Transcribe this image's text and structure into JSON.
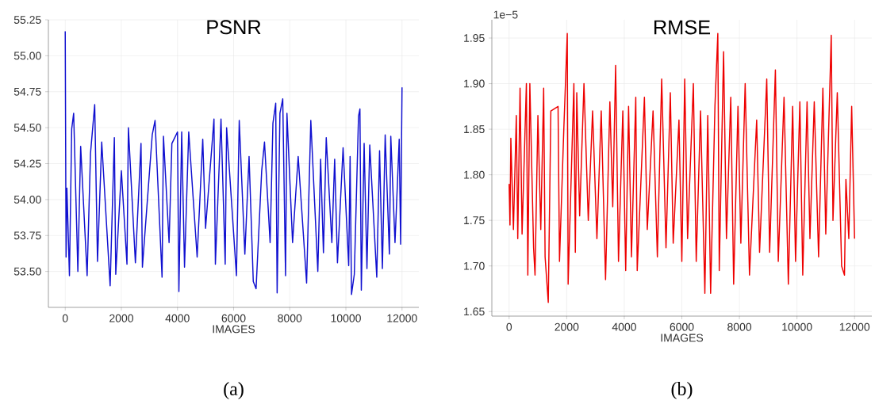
{
  "chart_data": [
    {
      "type": "line",
      "title": "PSNR",
      "xlabel": "IMAGES",
      "annotations": [
        "(a)"
      ],
      "grid": true,
      "xlim": [
        -600,
        12600
      ],
      "xticks": [
        0,
        2000,
        4000,
        6000,
        8000,
        10000,
        12000
      ],
      "ylim": [
        53.25,
        55.25
      ],
      "yticks": [
        {
          "value": 53.5,
          "label": "53.50"
        },
        {
          "value": 53.75,
          "label": "53.75"
        },
        {
          "value": 54.0,
          "label": "54.00"
        },
        {
          "value": 54.25,
          "label": "54.25"
        },
        {
          "value": 54.5,
          "label": "54.50"
        },
        {
          "value": 54.75,
          "label": "54.75"
        },
        {
          "value": 55.0,
          "label": "55.00"
        },
        {
          "value": 55.25,
          "label": "55.25"
        }
      ],
      "x": [
        0,
        30,
        60,
        130,
        150,
        230,
        300,
        450,
        550,
        780,
        900,
        1050,
        1150,
        1300,
        1600,
        1750,
        1800,
        2000,
        2200,
        2250,
        2500,
        2700,
        2750,
        3100,
        3200,
        3450,
        3500,
        3700,
        3800,
        4000,
        4050,
        4150,
        4250,
        4400,
        4700,
        4900,
        5000,
        5300,
        5350,
        5550,
        5700,
        5750,
        6100,
        6200,
        6400,
        6550,
        6700,
        6800,
        7000,
        7100,
        7300,
        7400,
        7500,
        7550,
        7650,
        7750,
        7850,
        7900,
        8100,
        8300,
        8600,
        8750,
        9000,
        9100,
        9200,
        9300,
        9500,
        9600,
        9700,
        9900,
        10100,
        10150,
        10200,
        10300,
        10450,
        10500,
        10550,
        10650,
        10750,
        10850,
        11100,
        11200,
        11300,
        11400,
        11550,
        11600,
        11750,
        11900,
        11950,
        12000
      ],
      "series": [
        {
          "color": "#1010d0",
          "values": [
            55.17,
            53.6,
            54.08,
            53.6,
            53.47,
            54.49,
            54.6,
            53.5,
            54.37,
            53.47,
            54.32,
            54.66,
            53.57,
            54.4,
            53.4,
            54.43,
            53.48,
            54.2,
            53.55,
            54.5,
            53.56,
            54.39,
            53.53,
            54.45,
            54.55,
            53.46,
            54.44,
            53.7,
            54.39,
            54.47,
            53.36,
            54.47,
            53.53,
            54.47,
            53.6,
            54.42,
            53.8,
            54.56,
            53.55,
            54.56,
            53.55,
            54.5,
            53.47,
            54.55,
            53.62,
            54.3,
            53.43,
            53.38,
            54.2,
            54.4,
            53.7,
            54.53,
            54.67,
            53.35,
            54.6,
            54.7,
            53.47,
            54.6,
            53.7,
            54.3,
            53.42,
            54.55,
            53.5,
            54.28,
            53.63,
            54.43,
            53.7,
            54.28,
            53.56,
            54.36,
            53.54,
            54.3,
            53.34,
            53.48,
            54.58,
            54.63,
            53.37,
            54.39,
            53.52,
            54.38,
            53.46,
            54.34,
            53.52,
            54.45,
            53.62,
            54.44,
            53.7,
            54.42,
            53.69,
            54.78
          ]
        }
      ]
    },
    {
      "type": "line",
      "title": "RMSE",
      "xlabel": "IMAGES",
      "annotations": [
        "1e−5",
        "(b)"
      ],
      "grid": true,
      "xlim": [
        -600,
        12600
      ],
      "xticks": [
        0,
        2000,
        4000,
        6000,
        8000,
        10000,
        12000
      ],
      "ylim": [
        1.645,
        1.97
      ],
      "yticks": [
        {
          "value": 1.65,
          "label": "1.65"
        },
        {
          "value": 1.7,
          "label": "1.70"
        },
        {
          "value": 1.75,
          "label": "1.75"
        },
        {
          "value": 1.8,
          "label": "1.80"
        },
        {
          "value": 1.85,
          "label": "1.85"
        },
        {
          "value": 1.9,
          "label": "1.90"
        },
        {
          "value": 1.95,
          "label": "1.95"
        }
      ],
      "x": [
        0,
        30,
        60,
        150,
        250,
        300,
        380,
        450,
        600,
        650,
        720,
        850,
        900,
        1000,
        1100,
        1200,
        1250,
        1360,
        1450,
        1700,
        1750,
        1900,
        2020,
        2050,
        2250,
        2300,
        2350,
        2450,
        2600,
        2750,
        2900,
        3050,
        3200,
        3350,
        3500,
        3600,
        3700,
        3800,
        3950,
        4050,
        4150,
        4250,
        4400,
        4450,
        4700,
        4800,
        5000,
        5150,
        5300,
        5450,
        5600,
        5700,
        5900,
        6000,
        6100,
        6200,
        6400,
        6500,
        6650,
        6800,
        6900,
        7000,
        7150,
        7250,
        7300,
        7450,
        7550,
        7700,
        7800,
        7950,
        8050,
        8200,
        8350,
        8600,
        8700,
        8950,
        9050,
        9250,
        9350,
        9550,
        9700,
        9850,
        9950,
        10100,
        10200,
        10350,
        10450,
        10600,
        10750,
        10900,
        11000,
        11190,
        11250,
        11400,
        11550,
        11650,
        11700,
        11800,
        11900,
        12000
      ],
      "series": [
        {
          "color": "#ee0000",
          "values": [
            1.79,
            1.745,
            1.84,
            1.74,
            1.865,
            1.73,
            1.895,
            1.735,
            1.9,
            1.69,
            1.9,
            1.72,
            1.69,
            1.865,
            1.74,
            1.895,
            1.71,
            1.66,
            1.87,
            1.875,
            1.705,
            1.85,
            1.955,
            1.68,
            1.9,
            1.715,
            1.89,
            1.755,
            1.9,
            1.75,
            1.87,
            1.73,
            1.87,
            1.685,
            1.88,
            1.765,
            1.92,
            1.705,
            1.87,
            1.695,
            1.875,
            1.71,
            1.885,
            1.695,
            1.885,
            1.74,
            1.87,
            1.71,
            1.905,
            1.72,
            1.89,
            1.725,
            1.86,
            1.705,
            1.905,
            1.73,
            1.9,
            1.705,
            1.87,
            1.67,
            1.865,
            1.67,
            1.875,
            1.955,
            1.695,
            1.935,
            1.73,
            1.885,
            1.68,
            1.875,
            1.725,
            1.9,
            1.69,
            1.86,
            1.715,
            1.905,
            1.715,
            1.915,
            1.705,
            1.885,
            1.68,
            1.875,
            1.705,
            1.88,
            1.69,
            1.88,
            1.73,
            1.88,
            1.71,
            1.895,
            1.735,
            1.953,
            1.75,
            1.89,
            1.7,
            1.69,
            1.795,
            1.73,
            1.875,
            1.73
          ]
        }
      ]
    }
  ]
}
